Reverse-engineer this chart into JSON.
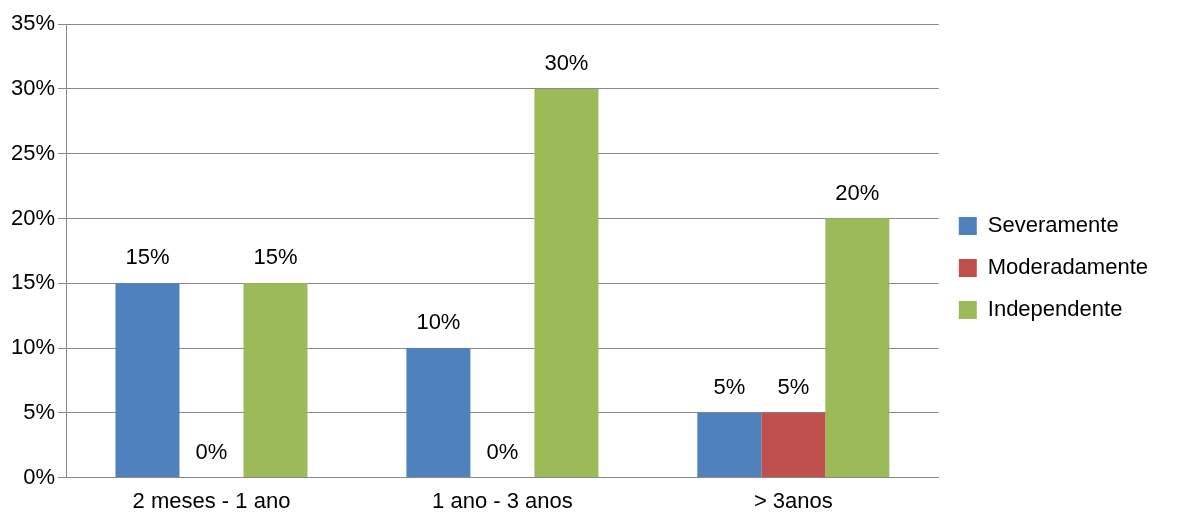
{
  "chart_data": {
    "type": "bar",
    "categories": [
      "2 meses - 1 ano",
      "1 ano - 3 anos",
      "> 3anos"
    ],
    "series": [
      {
        "name": "Severamente",
        "color": "#4f81bd",
        "values": [
          15,
          10,
          5
        ],
        "value_labels": [
          "15%",
          "10%",
          "5%"
        ]
      },
      {
        "name": "Moderadamente",
        "color": "#c0504d",
        "values": [
          0,
          0,
          5
        ],
        "value_labels": [
          "0%",
          "0%",
          "5%"
        ]
      },
      {
        "name": "Independente",
        "color": "#9bbb59",
        "values": [
          15,
          30,
          20
        ],
        "value_labels": [
          "15%",
          "30%",
          "20%"
        ]
      }
    ],
    "ylim": [
      0,
      35
    ],
    "yticks": [
      {
        "value": 0,
        "label": "0%"
      },
      {
        "value": 5,
        "label": "5%"
      },
      {
        "value": 10,
        "label": "10%"
      },
      {
        "value": 15,
        "label": "15%"
      },
      {
        "value": 20,
        "label": "20%"
      },
      {
        "value": 25,
        "label": "25%"
      },
      {
        "value": 30,
        "label": "30%"
      },
      {
        "value": 35,
        "label": "35%"
      }
    ],
    "grid": "y",
    "legend": "right"
  }
}
